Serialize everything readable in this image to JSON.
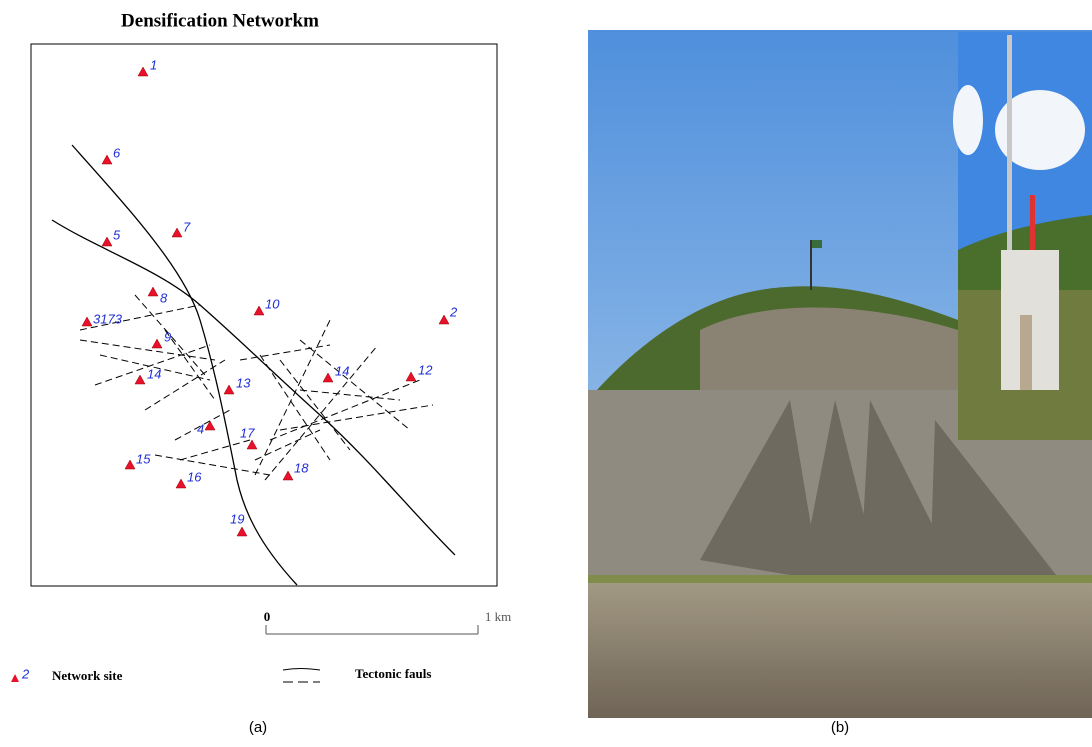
{
  "figure_a": {
    "title": "Densification Networkm",
    "sites": [
      "1",
      "6",
      "5",
      "7",
      "8",
      "3173",
      "10",
      "2",
      "9",
      "14",
      "13",
      "14",
      "12",
      "4",
      "17",
      "15",
      "16",
      "18",
      "19"
    ],
    "scale": {
      "start": "0",
      "end": "1 km"
    },
    "legend": {
      "site_symbol_label": "2",
      "site": "Network site",
      "fault": "Tectonic fauls"
    },
    "caption": "(a)"
  },
  "figure_b": {
    "caption": "(b)"
  }
}
